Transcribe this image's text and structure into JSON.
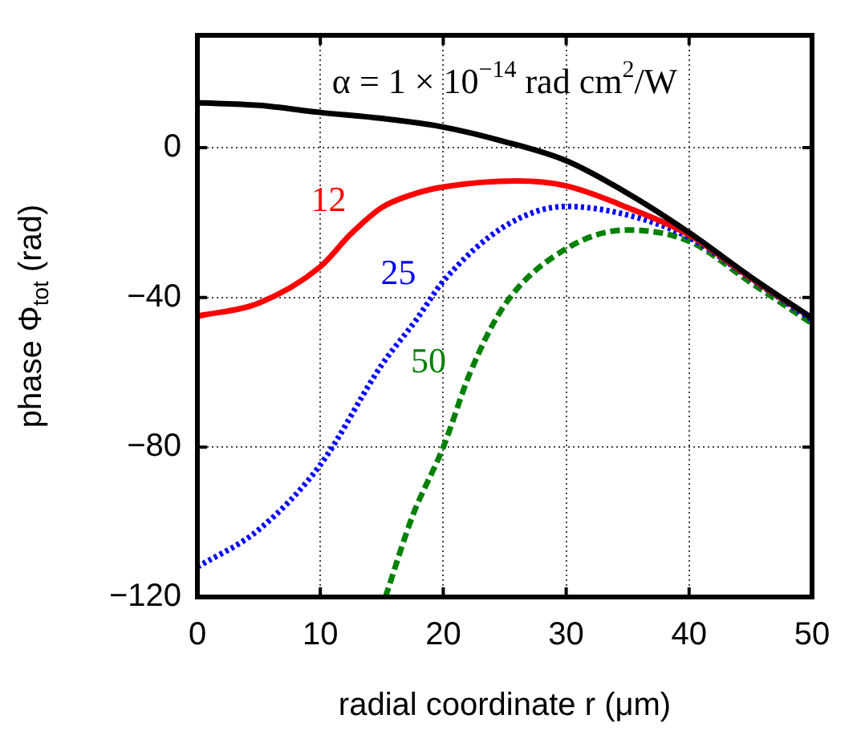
{
  "chart_data": {
    "type": "line",
    "xlabel": "radial coordinate r (μm)",
    "ylabel": "phase Φ$_{tot}$ (rad)",
    "xlim": [
      0,
      50
    ],
    "xticks": [
      0,
      10,
      20,
      30,
      40,
      50
    ],
    "ylim": [
      -120,
      30
    ],
    "yticks": [
      -120,
      -80,
      -40,
      0
    ],
    "grid": true,
    "legend": false,
    "marker": "none",
    "series": [
      {
        "color": "#000000",
        "line_style": "solid",
        "x": [
          0,
          5,
          10,
          15,
          20,
          25,
          30,
          35,
          40,
          45,
          50
        ],
        "values": [
          12,
          11.3,
          9.4,
          7.8,
          5.5,
          1.6,
          -3.5,
          -12.2,
          -22.7,
          -34.5,
          -45.5
        ]
      },
      {
        "name": "12",
        "color": "#ff0000",
        "line_style": "solid",
        "x": [
          0,
          5,
          10,
          12.5,
          15,
          17.5,
          20,
          26,
          30,
          35,
          40,
          45,
          50
        ],
        "values": [
          -45,
          -41.5,
          -31.8,
          -23,
          -16,
          -12.5,
          -10.5,
          -8.9,
          -10.2,
          -16,
          -23.3,
          -34.8,
          -45.5
        ]
      },
      {
        "name": "25",
        "color": "#0000ff",
        "line_style": "dotted",
        "x": [
          0,
          5,
          10,
          15,
          17.8,
          20,
          25,
          30,
          35,
          40,
          45,
          50
        ],
        "values": [
          -112,
          -102,
          -84.7,
          -58,
          -46,
          -35.7,
          -21,
          -15.7,
          -18,
          -24,
          -35,
          -46
        ]
      },
      {
        "name": "50",
        "color": "#008000",
        "line_style": "dashed",
        "x": [
          15.3,
          17.5,
          20,
          22.2,
          25,
          30,
          35,
          40,
          45,
          50
        ],
        "values": [
          -120,
          -98.4,
          -80,
          -60,
          -42,
          -27,
          -22,
          -25,
          -36,
          -47
        ]
      }
    ],
    "annotations": [
      "α = 1 × 10$^{−14}$ rad cm$^{2}$/W"
    ]
  }
}
